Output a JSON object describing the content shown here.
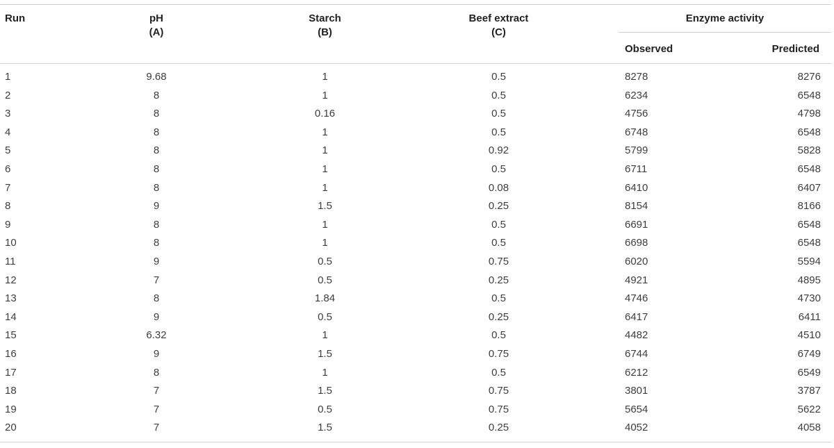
{
  "headers": {
    "run": "Run",
    "ph": "pH",
    "ph_code": "(A)",
    "starch": "Starch",
    "starch_code": "(B)",
    "beef": "Beef extract",
    "beef_code": "(C)",
    "enzyme": "Enzyme activity",
    "observed": "Observed",
    "predicted": "Predicted"
  },
  "rows": [
    [
      "1",
      "9.68",
      "1",
      "0.5",
      "8278",
      "8276"
    ],
    [
      "2",
      "8",
      "1",
      "0.5",
      "6234",
      "6548"
    ],
    [
      "3",
      "8",
      "0.16",
      "0.5",
      "4756",
      "4798"
    ],
    [
      "4",
      "8",
      "1",
      "0.5",
      "6748",
      "6548"
    ],
    [
      "5",
      "8",
      "1",
      "0.92",
      "5799",
      "5828"
    ],
    [
      "6",
      "8",
      "1",
      "0.5",
      "6711",
      "6548"
    ],
    [
      "7",
      "8",
      "1",
      "0.08",
      "6410",
      "6407"
    ],
    [
      "8",
      "9",
      "1.5",
      "0.25",
      "8154",
      "8166"
    ],
    [
      "9",
      "8",
      "1",
      "0.5",
      "6691",
      "6548"
    ],
    [
      "10",
      "8",
      "1",
      "0.5",
      "6698",
      "6548"
    ],
    [
      "11",
      "9",
      "0.5",
      "0.75",
      "6020",
      "5594"
    ],
    [
      "12",
      "7",
      "0.5",
      "0.25",
      "4921",
      "4895"
    ],
    [
      "13",
      "8",
      "1.84",
      "0.5",
      "4746",
      "4730"
    ],
    [
      "14",
      "9",
      "0.5",
      "0.25",
      "6417",
      "6411"
    ],
    [
      "15",
      "6.32",
      "1",
      "0.5",
      "4482",
      "4510"
    ],
    [
      "16",
      "9",
      "1.5",
      "0.75",
      "6744",
      "6749"
    ],
    [
      "17",
      "8",
      "1",
      "0.5",
      "6212",
      "6549"
    ],
    [
      "18",
      "7",
      "1.5",
      "0.75",
      "3801",
      "3787"
    ],
    [
      "19",
      "7",
      "0.5",
      "0.75",
      "5654",
      "5622"
    ],
    [
      "20",
      "7",
      "1.5",
      "0.25",
      "4052",
      "4058"
    ]
  ]
}
